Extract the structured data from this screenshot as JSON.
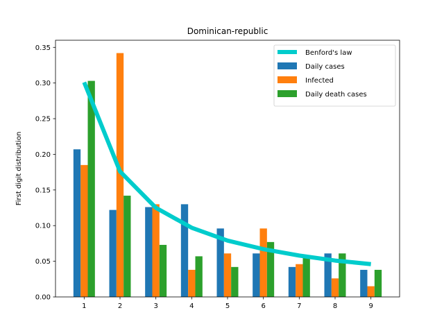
{
  "chart_data": {
    "type": "bar",
    "title": "Dominican-republic",
    "xlabel": "",
    "ylabel": "First digit distribution",
    "categories": [
      "1",
      "2",
      "3",
      "4",
      "5",
      "6",
      "7",
      "8",
      "9"
    ],
    "ylim": [
      0,
      0.36
    ],
    "yticks": [
      0.0,
      0.05,
      0.1,
      0.15,
      0.2,
      0.25,
      0.3,
      0.35
    ],
    "yticks_labels": [
      "0.00",
      "0.05",
      "0.10",
      "0.15",
      "0.20",
      "0.25",
      "0.30",
      "0.35"
    ],
    "grid": false,
    "legend_position": "top-right",
    "series": [
      {
        "name": "Daily cases",
        "type": "bar",
        "color": "#1f77b4",
        "values": [
          0.207,
          0.122,
          0.126,
          0.13,
          0.096,
          0.061,
          0.042,
          0.061,
          0.038
        ]
      },
      {
        "name": "Infected",
        "type": "bar",
        "color": "#ff7f0e",
        "values": [
          0.185,
          0.342,
          0.13,
          0.038,
          0.061,
          0.096,
          0.046,
          0.026,
          0.015
        ]
      },
      {
        "name": "Daily death cases",
        "type": "bar",
        "color": "#2ca02c",
        "values": [
          0.303,
          0.142,
          0.073,
          0.057,
          0.042,
          0.077,
          0.057,
          0.061,
          0.038
        ]
      }
    ],
    "line": {
      "name": "Benford's law",
      "type": "line",
      "color": "#00cccc",
      "values": [
        0.301,
        0.176,
        0.125,
        0.097,
        0.079,
        0.067,
        0.058,
        0.051,
        0.046
      ]
    }
  }
}
